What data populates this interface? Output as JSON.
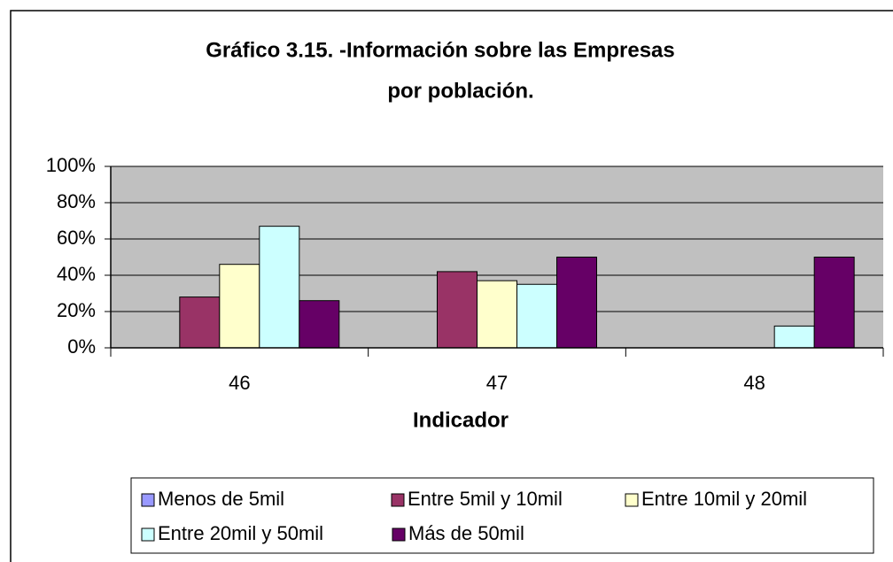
{
  "chart_data": {
    "type": "bar",
    "title": [
      "Gráfico 3.15. -Información sobre las Empresas",
      "por población."
    ],
    "x_label": "Indicador",
    "categories": [
      "46",
      "47",
      "48"
    ],
    "series": [
      {
        "name": "Menos de 5mil",
        "color": "#9999ff",
        "values": [
          0,
          0,
          0
        ]
      },
      {
        "name": "Entre 5mil y 10mil",
        "color": "#993366",
        "values": [
          28,
          42,
          0
        ]
      },
      {
        "name": "Entre 10mil y 20mil",
        "color": "#ffffcc",
        "values": [
          46,
          37,
          0
        ]
      },
      {
        "name": "Entre 20mil y 50mil",
        "color": "#ccffff",
        "values": [
          67,
          35,
          12
        ]
      },
      {
        "name": "Más de 50mil",
        "color": "#660066",
        "values": [
          26,
          50,
          50
        ]
      }
    ],
    "ylim": [
      0,
      100
    ],
    "yticks": [
      {
        "value": 0,
        "label": "0%"
      },
      {
        "value": 20,
        "label": "20%"
      },
      {
        "value": 40,
        "label": "40%"
      },
      {
        "value": 60,
        "label": "60%"
      },
      {
        "value": 80,
        "label": "80%"
      },
      {
        "value": 100,
        "label": "100%"
      }
    ],
    "grid": true,
    "legend": "bottom"
  }
}
